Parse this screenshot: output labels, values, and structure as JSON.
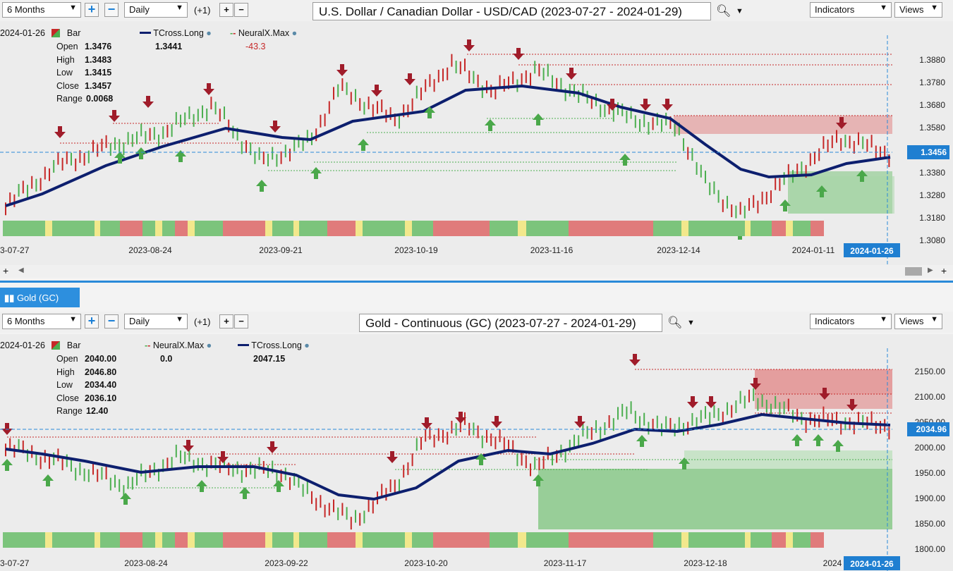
{
  "top": {
    "toolbar": {
      "period": "6 Months",
      "interval": "Daily",
      "offset": "(+1)",
      "title": "U.S. Dollar / Canadian Dollar - USD/CAD (2023-07-27 - 2024-01-29)",
      "indicators_label": "Indicators",
      "views_label": "Views"
    },
    "info": {
      "date": "2024-01-26",
      "type_label": "Bar",
      "open_label": "Open",
      "open": "1.3476",
      "high_label": "High",
      "high": "1.3483",
      "low_label": "Low",
      "low": "1.3415",
      "close_label": "Close",
      "close": "1.3457",
      "range_label": "Range",
      "range": "0.0068",
      "ind1_name": "TCross.Long",
      "ind1_value": "1.3441",
      "ind2_name": "NeuralX.Max",
      "ind2_value": "-43.3"
    },
    "price_label": "1.3456",
    "y_ticks": [
      "1.3880",
      "1.3780",
      "1.3680",
      "1.3580",
      "1.3480",
      "1.3380",
      "1.3280",
      "1.3180",
      "1.3080"
    ],
    "x_ticks": [
      "3-07-27",
      "2023-08-24",
      "2023-09-21",
      "2023-10-19",
      "2023-11-16",
      "2023-12-14",
      "2024-01-11"
    ],
    "current_date": "2024-01-26"
  },
  "bottom": {
    "tab_label": "Gold (GC)",
    "toolbar": {
      "period": "6 Months",
      "interval": "Daily",
      "offset": "(+1)",
      "title": "Gold - Continuous (GC) (2023-07-27 - 2024-01-29)",
      "indicators_label": "Indicators",
      "views_label": "Views"
    },
    "info": {
      "date": "2024-01-26",
      "type_label": "Bar",
      "open_label": "Open",
      "open": "2040.00",
      "high_label": "High",
      "high": "2046.80",
      "low_label": "Low",
      "low": "2034.40",
      "close_label": "Close",
      "close": "2036.10",
      "range_label": "Range",
      "range": "12.40",
      "ind1_name": "NeuralX.Max",
      "ind1_value": "0.0",
      "ind2_name": "TCross.Long",
      "ind2_value": "2047.15"
    },
    "price_label": "2034.96",
    "y_ticks": [
      "2150.00",
      "2100.00",
      "2050.00",
      "2000.00",
      "1950.00",
      "1900.00",
      "1850.00",
      "1800.00"
    ],
    "x_ticks": [
      "3-07-27",
      "2023-08-24",
      "2023-09-22",
      "2023-10-20",
      "2023-11-17",
      "2023-12-18",
      "2024"
    ],
    "current_date": "2024-01-26"
  },
  "colors": {
    "up": "#4caf50",
    "down": "#c62828",
    "tcross": "#0d1f6e",
    "band_red": "#e07b7b",
    "band_green": "#7cc47c",
    "band_yellow": "#f2e88c",
    "accent": "#2a8ad8"
  }
}
